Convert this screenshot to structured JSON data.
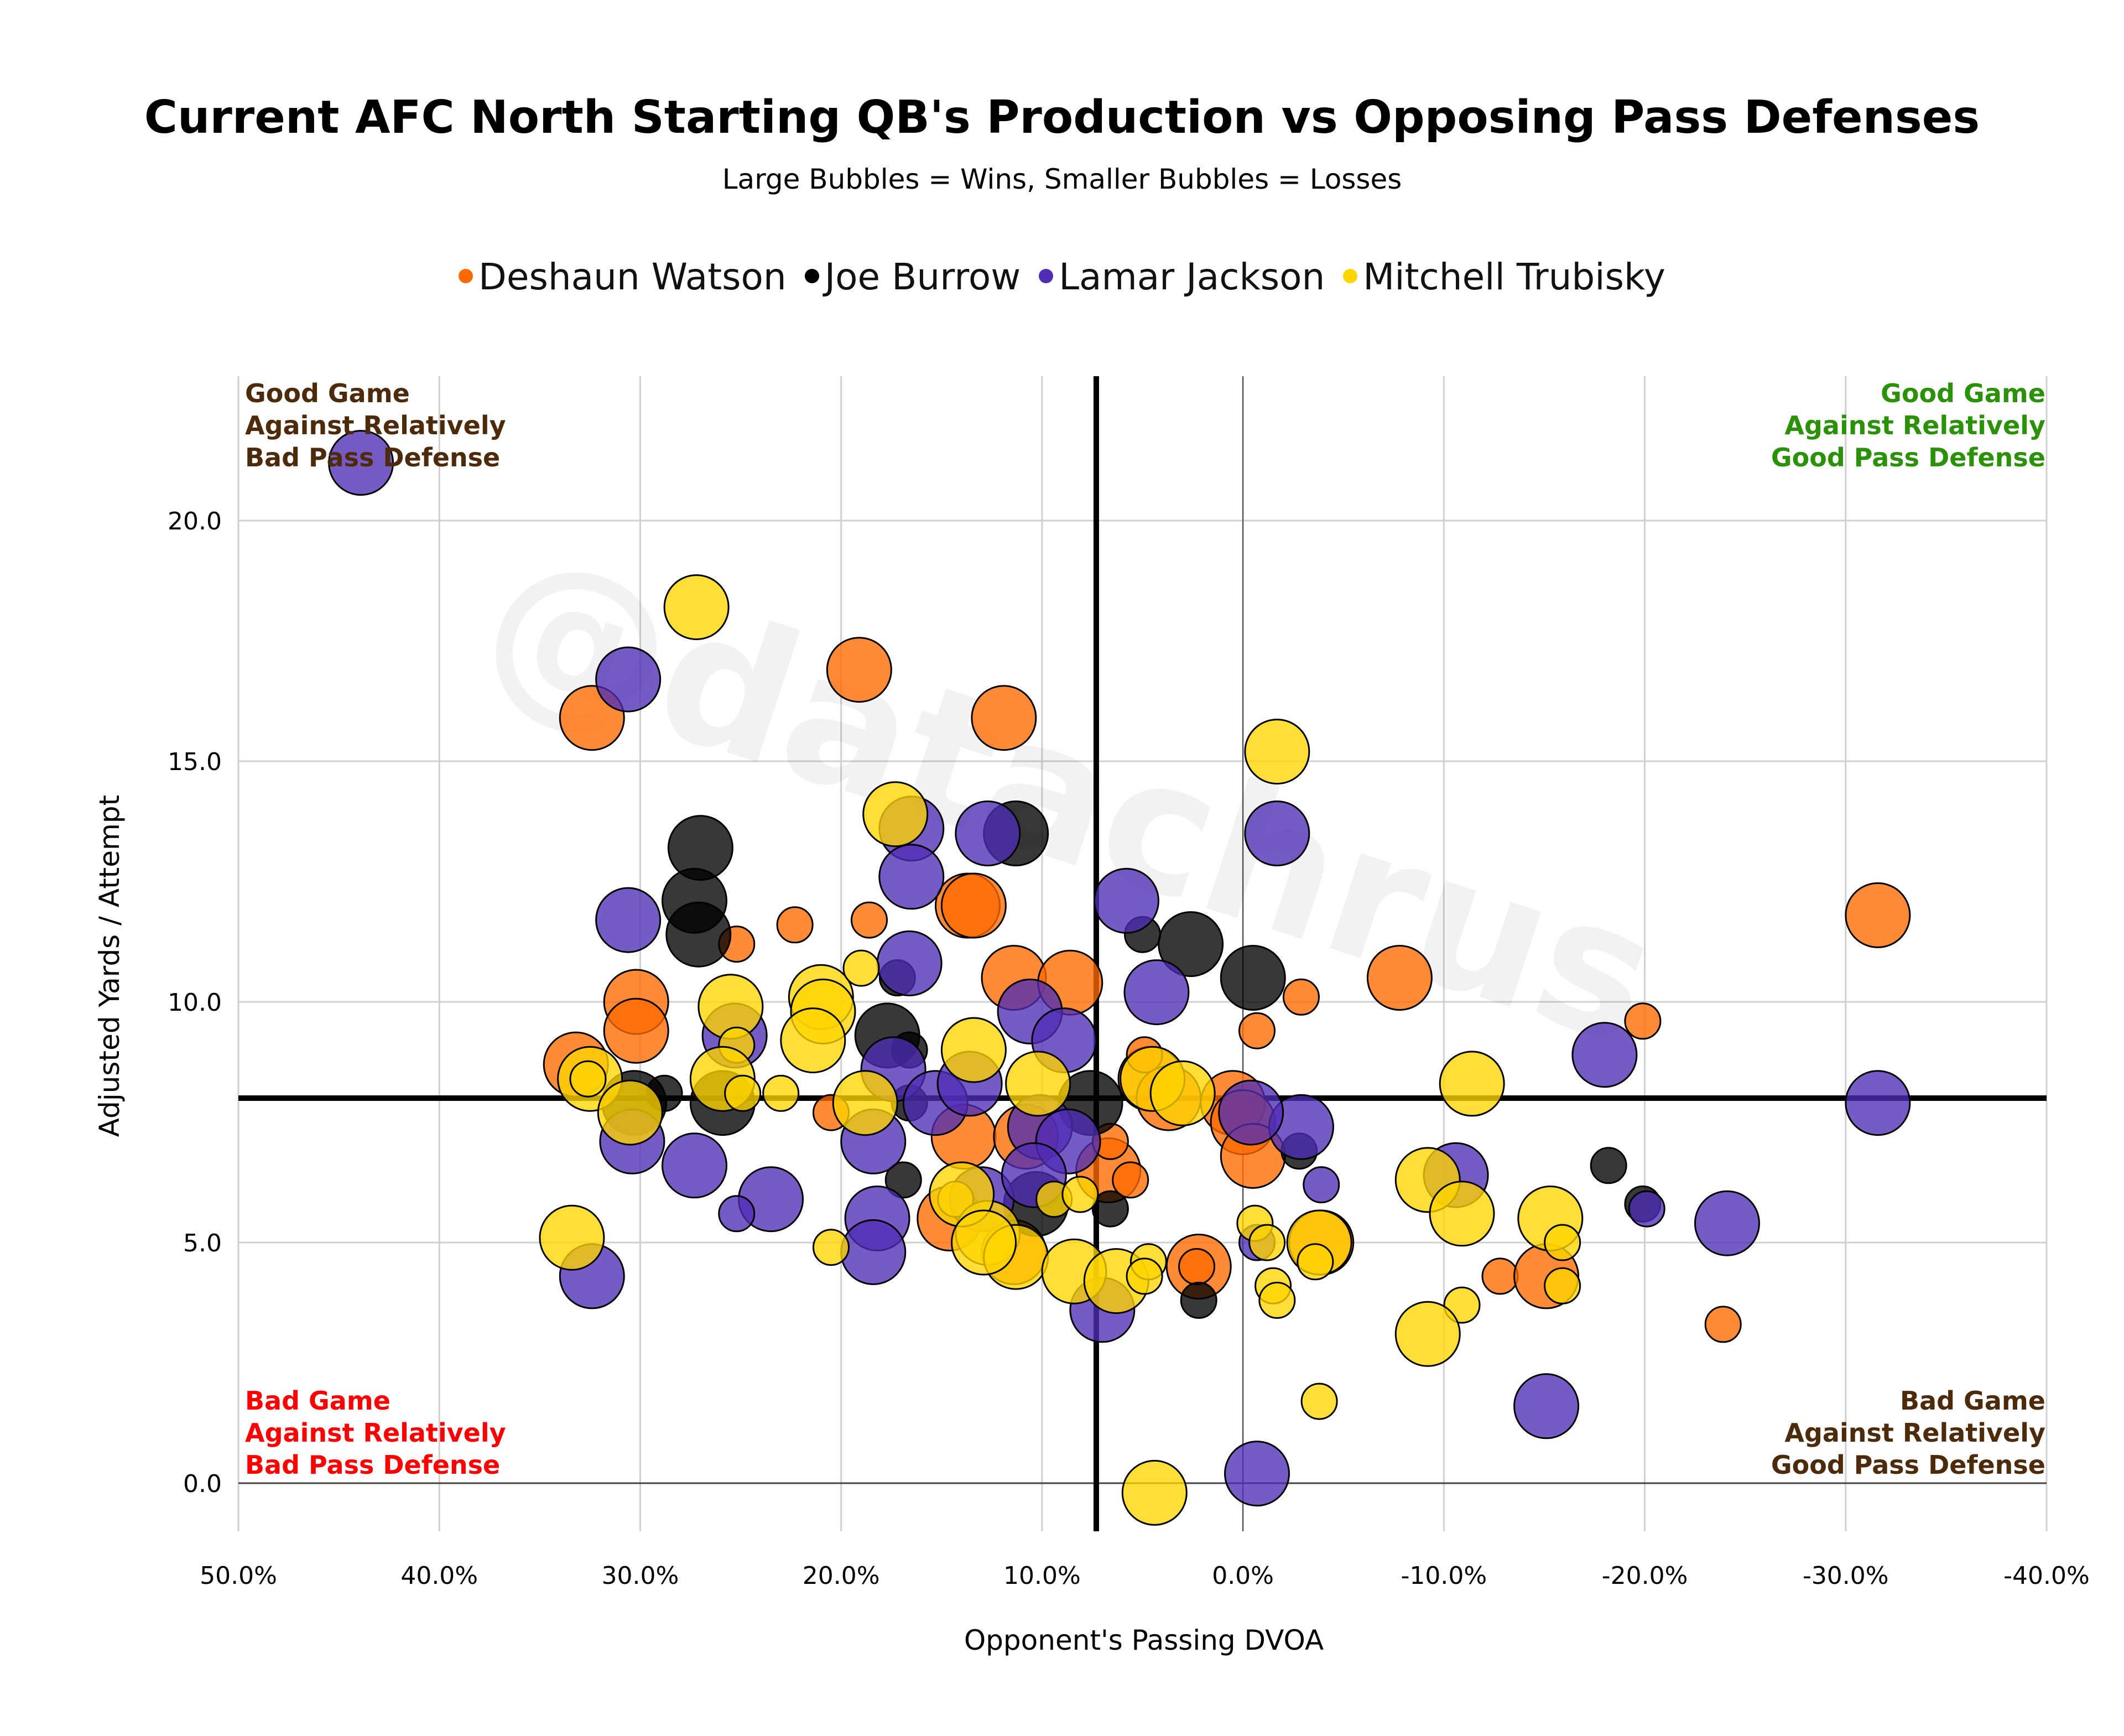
{
  "chart_data": {
    "type": "scatter",
    "title": "Current AFC North Starting QB's Production vs Opposing Pass Defenses",
    "subtitle": "Large Bubbles = Wins, Smaller Bubbles = Losses",
    "xlabel": "Opponent's Passing DVOA",
    "ylabel": "Adjusted Yards / Attempt",
    "xlim": [
      50,
      -40
    ],
    "ylim": [
      -1.0,
      23.0
    ],
    "x_reversed": true,
    "x_ticks": [
      "50.0%",
      "40.0%",
      "30.0%",
      "20.0%",
      "10.0%",
      "0.0%",
      "-10.0%",
      "-20.0%",
      "-30.0%",
      "-40.0%"
    ],
    "x_tick_values": [
      50,
      40,
      30,
      20,
      10,
      0,
      -10,
      -20,
      -30,
      -40
    ],
    "y_ticks": [
      "0.0",
      "5.0",
      "10.0",
      "15.0",
      "20.0"
    ],
    "y_tick_values": [
      0,
      5,
      10,
      15,
      20
    ],
    "grid": true,
    "legend_position": "top-center",
    "reference_lines": {
      "x": 7.3,
      "y": 8.0
    },
    "watermark": "@datachrus",
    "quadrant_labels": [
      {
        "pos": "top-left",
        "lines": [
          "Good Game",
          "Against Relatively",
          "Bad Pass Defense"
        ],
        "color": "#4D2A0A"
      },
      {
        "pos": "top-right",
        "lines": [
          "Good Game",
          "Against Relatively",
          "Good Pass Defense"
        ],
        "color": "#2A9108"
      },
      {
        "pos": "bottom-left",
        "lines": [
          "Bad Game",
          "Against Relatively",
          "Bad Pass Defense"
        ],
        "color": "#FF0000"
      },
      {
        "pos": "bottom-right",
        "lines": [
          "Bad Game",
          "Against Relatively",
          "Good Pass Defense"
        ],
        "color": "#4D2A0A"
      }
    ],
    "series": [
      {
        "name": "Deshaun Watson",
        "color": "#FF6A00",
        "points": [
          {
            "x": 32.4,
            "y": 15.9,
            "win": true
          },
          {
            "x": 19.1,
            "y": 16.9,
            "win": true
          },
          {
            "x": 11.9,
            "y": 15.9,
            "win": true
          },
          {
            "x": -31.6,
            "y": 11.8,
            "win": true
          },
          {
            "x": -19.9,
            "y": 9.6,
            "win": false
          },
          {
            "x": -23.9,
            "y": 3.3,
            "win": false
          },
          {
            "x": -7.8,
            "y": 10.5,
            "win": true
          },
          {
            "x": -2.9,
            "y": 10.1,
            "win": false
          },
          {
            "x": -0.7,
            "y": 9.4,
            "win": false
          },
          {
            "x": 22.3,
            "y": 11.6,
            "win": false
          },
          {
            "x": 18.6,
            "y": 11.7,
            "win": false
          },
          {
            "x": 25.2,
            "y": 11.2,
            "win": false
          },
          {
            "x": 30.2,
            "y": 10.0,
            "win": true
          },
          {
            "x": 30.2,
            "y": 9.4,
            "win": true
          },
          {
            "x": 33.2,
            "y": 8.7,
            "win": true
          },
          {
            "x": 13.7,
            "y": 12.0,
            "win": true
          },
          {
            "x": 13.4,
            "y": 12.0,
            "win": true
          },
          {
            "x": 11.4,
            "y": 10.5,
            "win": true
          },
          {
            "x": 8.6,
            "y": 10.4,
            "win": true
          },
          {
            "x": 4.6,
            "y": 8.4,
            "win": true
          },
          {
            "x": 3.7,
            "y": 8.0,
            "win": true
          },
          {
            "x": 0.5,
            "y": 7.9,
            "win": true
          },
          {
            "x": 0.0,
            "y": 7.5,
            "win": true
          },
          {
            "x": -0.5,
            "y": 6.8,
            "win": true
          },
          {
            "x": 2.2,
            "y": 4.5,
            "win": true
          },
          {
            "x": 2.3,
            "y": 4.5,
            "win": false
          },
          {
            "x": -12.8,
            "y": 4.3,
            "win": false
          },
          {
            "x": -15.1,
            "y": 4.3,
            "win": true
          },
          {
            "x": 6.7,
            "y": 6.5,
            "win": true
          },
          {
            "x": 6.6,
            "y": 7.1,
            "win": false
          },
          {
            "x": 4.9,
            "y": 8.9,
            "win": false
          },
          {
            "x": 5.6,
            "y": 6.3,
            "win": false
          },
          {
            "x": 20.5,
            "y": 7.7,
            "win": false
          },
          {
            "x": 14.6,
            "y": 5.5,
            "win": true
          },
          {
            "x": 13.9,
            "y": 7.2,
            "win": true
          },
          {
            "x": 10.8,
            "y": 7.2,
            "win": true
          },
          {
            "x": 11.4,
            "y": 4.8,
            "win": true
          },
          {
            "x": -3.9,
            "y": 5.0,
            "win": true
          }
        ]
      },
      {
        "name": "Joe Burrow",
        "color": "#000000",
        "points": [
          {
            "x": 27.0,
            "y": 13.2,
            "win": true
          },
          {
            "x": 27.3,
            "y": 12.1,
            "win": true
          },
          {
            "x": 27.1,
            "y": 11.4,
            "win": true
          },
          {
            "x": 11.3,
            "y": 13.5,
            "win": true
          },
          {
            "x": 2.6,
            "y": 11.2,
            "win": true
          },
          {
            "x": -0.5,
            "y": 10.5,
            "win": true
          },
          {
            "x": 17.2,
            "y": 10.5,
            "win": false
          },
          {
            "x": 28.8,
            "y": 8.1,
            "win": false
          },
          {
            "x": 30.3,
            "y": 7.9,
            "win": true
          },
          {
            "x": 25.9,
            "y": 7.9,
            "win": true
          },
          {
            "x": 16.6,
            "y": 9.0,
            "win": false
          },
          {
            "x": 16.9,
            "y": 6.3,
            "win": false
          },
          {
            "x": 17.7,
            "y": 9.3,
            "win": true
          },
          {
            "x": 7.6,
            "y": 7.9,
            "win": true
          },
          {
            "x": -18.2,
            "y": 6.6,
            "win": false
          },
          {
            "x": -19.9,
            "y": 5.8,
            "win": false
          },
          {
            "x": 2.2,
            "y": 3.8,
            "win": false
          },
          {
            "x": -2.8,
            "y": 6.9,
            "win": false
          },
          {
            "x": 10.3,
            "y": 5.8,
            "win": true
          },
          {
            "x": 5.0,
            "y": 11.4,
            "win": false
          },
          {
            "x": 6.6,
            "y": 5.7,
            "win": false
          },
          {
            "x": 16.6,
            "y": 7.9,
            "win": false
          }
        ]
      },
      {
        "name": "Lamar Jackson",
        "color": "#512DB5",
        "points": [
          {
            "x": 43.9,
            "y": 21.2,
            "win": true
          },
          {
            "x": 30.6,
            "y": 16.7,
            "win": true
          },
          {
            "x": 12.7,
            "y": 13.5,
            "win": true
          },
          {
            "x": -1.7,
            "y": 13.5,
            "win": true
          },
          {
            "x": 16.5,
            "y": 13.6,
            "win": true
          },
          {
            "x": 16.5,
            "y": 12.6,
            "win": true
          },
          {
            "x": 30.6,
            "y": 11.7,
            "win": true
          },
          {
            "x": 5.8,
            "y": 12.1,
            "win": true
          },
          {
            "x": 16.6,
            "y": 10.8,
            "win": true
          },
          {
            "x": 4.3,
            "y": 10.2,
            "win": true
          },
          {
            "x": 10.6,
            "y": 9.8,
            "win": true
          },
          {
            "x": 25.3,
            "y": 9.3,
            "win": true
          },
          {
            "x": 8.9,
            "y": 9.2,
            "win": true
          },
          {
            "x": -18.0,
            "y": 8.9,
            "win": true
          },
          {
            "x": -31.6,
            "y": 7.9,
            "win": true
          },
          {
            "x": -2.9,
            "y": 7.4,
            "win": true
          },
          {
            "x": -0.4,
            "y": 7.7,
            "win": true
          },
          {
            "x": 30.4,
            "y": 7.1,
            "win": true
          },
          {
            "x": 27.3,
            "y": 6.6,
            "win": true
          },
          {
            "x": 23.5,
            "y": 5.9,
            "win": true
          },
          {
            "x": 18.4,
            "y": 7.1,
            "win": true
          },
          {
            "x": 18.2,
            "y": 5.5,
            "win": true
          },
          {
            "x": 18.4,
            "y": 4.8,
            "win": true
          },
          {
            "x": 32.4,
            "y": 4.3,
            "win": true
          },
          {
            "x": 7.0,
            "y": 3.6,
            "win": true
          },
          {
            "x": -0.7,
            "y": 0.2,
            "win": true
          },
          {
            "x": -15.1,
            "y": 1.6,
            "win": true
          },
          {
            "x": -24.1,
            "y": 5.4,
            "win": true
          },
          {
            "x": -10.6,
            "y": 6.4,
            "win": true
          },
          {
            "x": -20.1,
            "y": 5.7,
            "win": false
          },
          {
            "x": -3.9,
            "y": 6.2,
            "win": false
          },
          {
            "x": -0.7,
            "y": 5.0,
            "win": false
          },
          {
            "x": 25.2,
            "y": 5.6,
            "win": false
          },
          {
            "x": 17.4,
            "y": 8.6,
            "win": true
          },
          {
            "x": 15.3,
            "y": 7.9,
            "win": true
          },
          {
            "x": 13.0,
            "y": 5.9,
            "win": true
          },
          {
            "x": 13.6,
            "y": 8.3,
            "win": true
          },
          {
            "x": 10.1,
            "y": 7.4,
            "win": true
          },
          {
            "x": 8.7,
            "y": 7.1,
            "win": true
          },
          {
            "x": 10.4,
            "y": 6.4,
            "win": true
          }
        ]
      },
      {
        "name": "Mitchell Trubisky",
        "color": "#FFD500",
        "points": [
          {
            "x": 27.2,
            "y": 18.2,
            "win": true
          },
          {
            "x": 17.3,
            "y": 13.9,
            "win": true
          },
          {
            "x": -1.7,
            "y": 15.2,
            "win": true
          },
          {
            "x": 25.5,
            "y": 9.9,
            "win": true
          },
          {
            "x": 21.0,
            "y": 10.1,
            "win": true
          },
          {
            "x": 20.9,
            "y": 9.8,
            "win": true
          },
          {
            "x": 21.4,
            "y": 9.2,
            "win": true
          },
          {
            "x": 19.0,
            "y": 10.7,
            "win": false
          },
          {
            "x": 25.2,
            "y": 9.1,
            "win": false
          },
          {
            "x": 32.5,
            "y": 8.4,
            "win": true
          },
          {
            "x": 32.6,
            "y": 8.4,
            "win": false
          },
          {
            "x": 30.5,
            "y": 7.7,
            "win": true
          },
          {
            "x": 25.9,
            "y": 8.4,
            "win": true
          },
          {
            "x": 24.9,
            "y": 8.1,
            "win": false
          },
          {
            "x": 23.0,
            "y": 8.1,
            "win": false
          },
          {
            "x": 18.8,
            "y": 7.9,
            "win": true
          },
          {
            "x": 13.4,
            "y": 9.0,
            "win": true
          },
          {
            "x": 10.2,
            "y": 8.3,
            "win": true
          },
          {
            "x": 4.5,
            "y": 8.4,
            "win": true
          },
          {
            "x": 3.0,
            "y": 8.1,
            "win": true
          },
          {
            "x": -11.4,
            "y": 8.3,
            "win": true
          },
          {
            "x": -9.2,
            "y": 6.3,
            "win": true
          },
          {
            "x": -10.9,
            "y": 5.6,
            "win": true
          },
          {
            "x": -15.3,
            "y": 5.5,
            "win": true
          },
          {
            "x": -15.9,
            "y": 5.0,
            "win": false
          },
          {
            "x": -15.9,
            "y": 4.1,
            "win": false
          },
          {
            "x": -10.9,
            "y": 3.7,
            "win": false
          },
          {
            "x": -9.2,
            "y": 3.1,
            "win": true
          },
          {
            "x": -3.8,
            "y": 5.0,
            "win": true
          },
          {
            "x": -3.6,
            "y": 4.6,
            "win": false
          },
          {
            "x": -1.5,
            "y": 4.1,
            "win": false
          },
          {
            "x": -1.7,
            "y": 3.8,
            "win": false
          },
          {
            "x": -0.6,
            "y": 5.4,
            "win": false
          },
          {
            "x": -1.2,
            "y": 5.0,
            "win": false
          },
          {
            "x": 33.4,
            "y": 5.1,
            "win": true
          },
          {
            "x": 20.5,
            "y": 4.9,
            "win": false
          },
          {
            "x": 14.3,
            "y": 5.9,
            "win": false
          },
          {
            "x": 12.7,
            "y": 5.2,
            "win": true
          },
          {
            "x": 11.3,
            "y": 4.7,
            "win": true
          },
          {
            "x": 8.4,
            "y": 4.4,
            "win": true
          },
          {
            "x": 9.4,
            "y": 5.9,
            "win": false
          },
          {
            "x": 8.1,
            "y": 6.0,
            "win": false
          },
          {
            "x": 6.3,
            "y": 4.2,
            "win": true
          },
          {
            "x": 4.7,
            "y": 4.6,
            "win": false
          },
          {
            "x": 4.9,
            "y": 4.3,
            "win": false
          },
          {
            "x": -3.8,
            "y": 1.7,
            "win": false
          },
          {
            "x": 4.4,
            "y": -0.2,
            "win": true
          },
          {
            "x": 14.0,
            "y": 6.0,
            "win": true
          },
          {
            "x": 12.9,
            "y": 5.0,
            "win": true
          }
        ]
      }
    ]
  }
}
